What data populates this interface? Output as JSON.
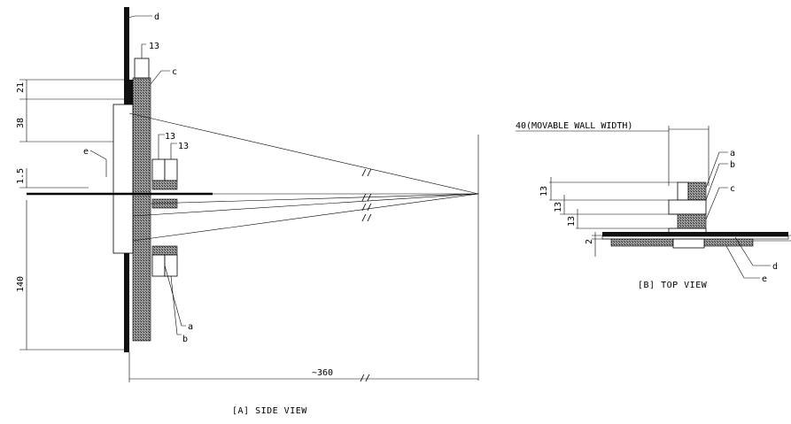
{
  "side_view": {
    "caption": "[A] SIDE VIEW",
    "dims": {
      "d21": "21",
      "d38": "38",
      "d1_5": "1.5",
      "d140": "140",
      "d360": "~360",
      "top13": "13",
      "mid13a": "13",
      "mid13b": "13"
    },
    "labels": {
      "a": "a",
      "b": "b",
      "c": "c",
      "d": "d",
      "e": "e"
    }
  },
  "top_view": {
    "caption": "[B] TOP VIEW",
    "wall_width": "40(MOVABLE WALL WIDTH)",
    "dims": {
      "d13a": "13",
      "d13b": "13",
      "d13c": "13",
      "d2": "2"
    },
    "labels": {
      "a": "a",
      "b": "b",
      "c": "c",
      "d": "d",
      "e": "e"
    }
  }
}
